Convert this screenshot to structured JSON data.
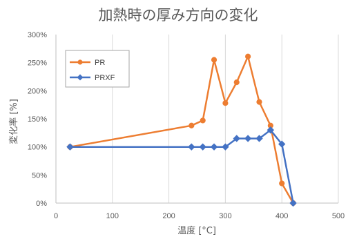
{
  "chart_data": {
    "type": "line",
    "title": "加熱時の厚み方向の変化",
    "xlabel": "温度 [°C]",
    "ylabel": "変化率 [%]",
    "xlim": [
      0,
      500
    ],
    "ylim": [
      0,
      300
    ],
    "x_ticks": [
      0,
      100,
      200,
      300,
      400,
      500
    ],
    "y_ticks": [
      0,
      50,
      100,
      150,
      200,
      250,
      300
    ],
    "x_tick_labels": [
      "0",
      "100",
      "200",
      "300",
      "400",
      "500"
    ],
    "y_tick_labels": [
      "0%",
      "50%",
      "100%",
      "150%",
      "200%",
      "250%",
      "300%"
    ],
    "grid": "vertical",
    "legend_position": "top-left",
    "series": [
      {
        "name": "PR",
        "color": "#ed7d31",
        "marker": "circle",
        "x": [
          25,
          240,
          260,
          280,
          300,
          320,
          340,
          360,
          380,
          400,
          420
        ],
        "y": [
          100,
          138,
          147,
          255,
          178,
          215,
          261,
          180,
          138,
          35,
          0
        ]
      },
      {
        "name": "PRXF",
        "color": "#4472c4",
        "marker": "diamond",
        "x": [
          25,
          240,
          260,
          280,
          300,
          320,
          340,
          360,
          380,
          400,
          420
        ],
        "y": [
          100,
          100,
          100,
          100,
          100,
          115,
          115,
          115,
          130,
          105,
          0
        ]
      }
    ]
  }
}
